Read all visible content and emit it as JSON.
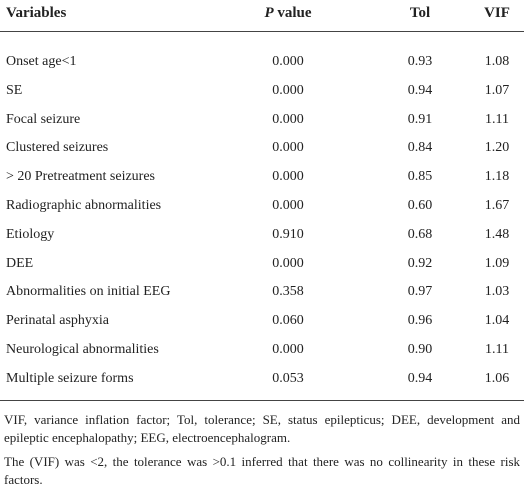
{
  "table": {
    "header": [
      "Variables",
      "P value",
      "Tol",
      "VIF"
    ],
    "rows": [
      [
        "Onset age<1",
        "0.000",
        "0.93",
        "1.08"
      ],
      [
        "SE",
        "0.000",
        "0.94",
        "1.07"
      ],
      [
        "Focal seizure",
        "0.000",
        "0.91",
        "1.11"
      ],
      [
        "Clustered seizures",
        "0.000",
        "0.84",
        "1.20"
      ],
      [
        "> 20 Pretreatment seizures",
        "0.000",
        "0.85",
        "1.18"
      ],
      [
        "Radiographic abnormalities",
        "0.000",
        "0.60",
        "1.67"
      ],
      [
        "Etiology",
        "0.910",
        "0.68",
        "1.48"
      ],
      [
        "DEE",
        "0.000",
        "0.92",
        "1.09"
      ],
      [
        "Abnormalities on initial EEG",
        "0.358",
        "0.97",
        "1.03"
      ],
      [
        "Perinatal asphyxia",
        "0.060",
        "0.96",
        "1.04"
      ],
      [
        "Neurological abnormalities",
        "0.000",
        "0.90",
        "1.11"
      ],
      [
        "Multiple seizure forms",
        "0.053",
        "0.94",
        "1.06"
      ]
    ],
    "notes": [
      "VIF, variance inflation factor; Tol, tolerance; SE, status epilepticus; DEE, development and epileptic encephalopathy; EEG, electroencephalogram.",
      "The (VIF) was <2, the tolerance was >0.1 inferred that there was no collinearity in these risk factors."
    ]
  }
}
